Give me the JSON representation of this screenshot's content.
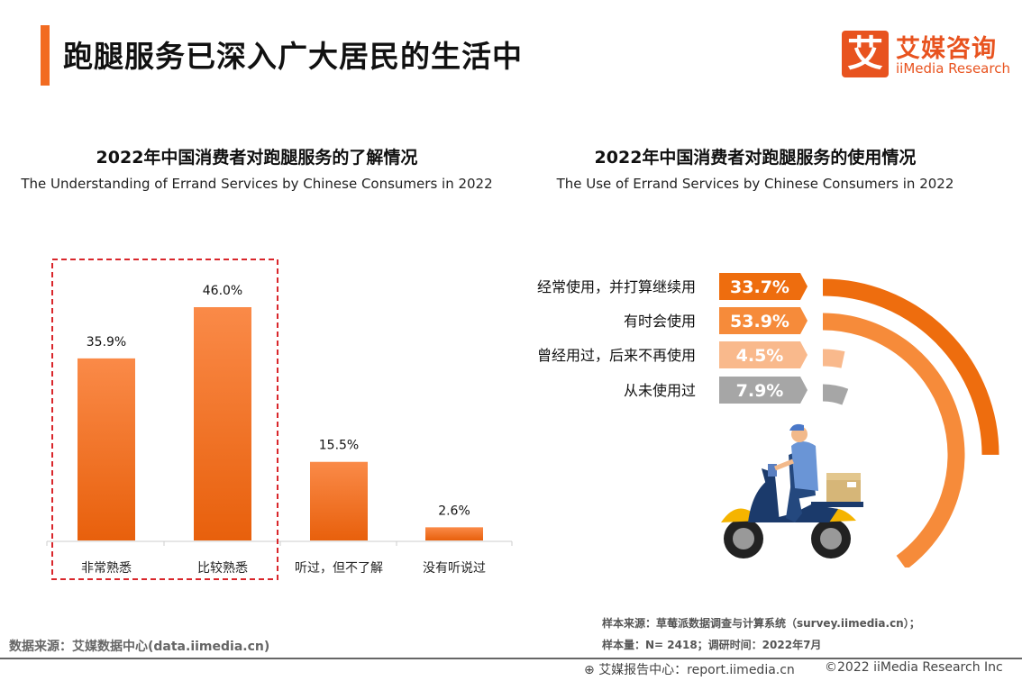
{
  "header": {
    "title": "跑腿服务已深入广大居民的生活中",
    "logo_mark": "艾",
    "logo_cn": "艾媒咨询",
    "logo_en": "iiMedia Research"
  },
  "colors": {
    "accent": "#f26b21",
    "bar_top": "#fa8a48",
    "bar_bottom": "#e8600c",
    "highlight_border": "#d9262b"
  },
  "chart_data": [
    {
      "type": "bar",
      "title": "2022年中国消费者对跑腿服务的了解情况",
      "subtitle": "The Understanding of Errand Services by Chinese Consumers in 2022",
      "categories": [
        "非常熟悉",
        "比较熟悉",
        "听过，但不了解",
        "没有听说过"
      ],
      "values": [
        35.9,
        46.0,
        15.5,
        2.6
      ],
      "data_labels": [
        "35.9%",
        "46.0%",
        "15.5%",
        "2.6%"
      ],
      "highlighted": [
        "非常熟悉",
        "比较熟悉"
      ],
      "ylim": [
        0,
        46.0
      ],
      "grid": false
    },
    {
      "type": "radial-bar",
      "title": "2022年中国消费者对跑腿服务的使用情况",
      "subtitle": "The Use of Errand Services by Chinese Consumers in 2022",
      "categories": [
        "经常使用，并打算继续用",
        "有时会使用",
        "曾经用过，后来不再使用",
        "从未使用过"
      ],
      "values": [
        33.7,
        53.9,
        4.5,
        7.9
      ],
      "data_labels": [
        "33.7%",
        "53.9%",
        "4.5%",
        "7.9%"
      ],
      "colors": [
        "#ee6d0e",
        "#f68b3a",
        "#f9b98c",
        "#a6a6a6"
      ]
    }
  ],
  "footer": {
    "data_source": "数据来源：艾媒数据中心(data.iimedia.cn)",
    "sample_source": "样本来源：草莓派数据调查与计算系统（survey.iimedia.cn）；",
    "sample_size": "样本量：N= 2418；调研时间：2022年7月",
    "report_center": "艾媒报告中心：report.iimedia.cn",
    "copyright": "©2022  iiMedia Research  Inc"
  }
}
